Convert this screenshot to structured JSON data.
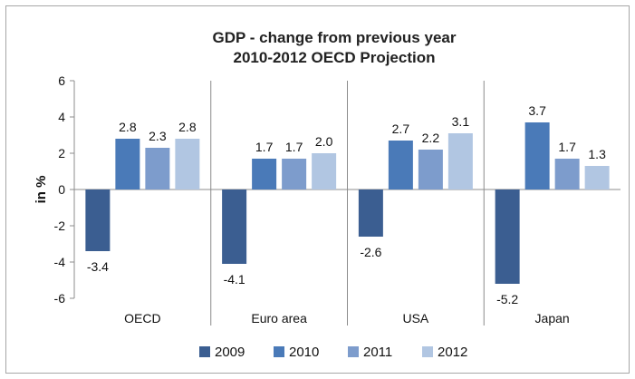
{
  "chart_data": {
    "type": "bar",
    "title": "GDP - change from previous year",
    "subtitle": "2010-2012 OECD Projection",
    "xlabel": "",
    "ylabel": "in %",
    "ylim": [
      -6,
      6
    ],
    "yticks": [
      6,
      4,
      2,
      0,
      -2,
      -4,
      -6
    ],
    "grid": false,
    "legend_position": "bottom",
    "categories": [
      "OECD",
      "Euro area",
      "USA",
      "Japan"
    ],
    "series": [
      {
        "name": "2009",
        "color": "#3b5e91",
        "values": [
          -3.4,
          -4.1,
          -2.6,
          -5.2
        ],
        "labels": [
          "-3.4",
          "-4.1",
          "-2.6",
          "-5.2"
        ]
      },
      {
        "name": "2010",
        "color": "#4a7ab8",
        "values": [
          2.8,
          1.7,
          2.7,
          3.7
        ],
        "labels": [
          "2.8",
          "1.7",
          "2.7",
          "3.7"
        ]
      },
      {
        "name": "2011",
        "color": "#7d9ccc",
        "values": [
          2.3,
          1.7,
          2.2,
          1.7
        ],
        "labels": [
          "2.3",
          "1.7",
          "2.2",
          "1.7"
        ]
      },
      {
        "name": "2012",
        "color": "#b1c6e2",
        "values": [
          2.8,
          2.0,
          3.1,
          1.3
        ],
        "labels": [
          "2.8",
          "2.0",
          "3.1",
          "1.3"
        ]
      }
    ]
  }
}
